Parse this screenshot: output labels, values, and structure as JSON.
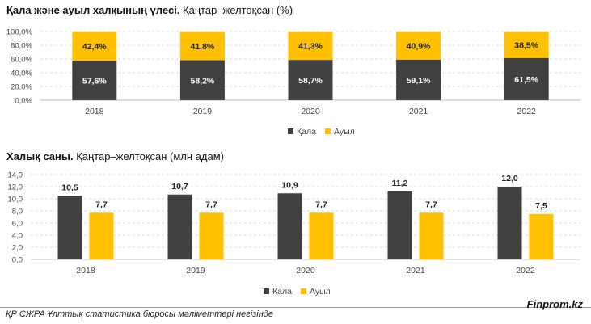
{
  "chart_data": [
    {
      "type": "bar",
      "stacked": true,
      "title": "Қала және ауыл халқының үлесі.",
      "subtitle": "Қаңтар–желтоқсан (%)",
      "categories": [
        "2018",
        "2019",
        "2020",
        "2021",
        "2022"
      ],
      "series": [
        {
          "name": "Қала",
          "values": [
            57.6,
            58.2,
            58.7,
            59.1,
            61.5
          ],
          "labels": [
            "57,6%",
            "58,2%",
            "58,7%",
            "59,1%",
            "61,5%"
          ],
          "color": "#404040"
        },
        {
          "name": "Ауыл",
          "values": [
            42.4,
            41.8,
            41.3,
            40.9,
            38.5
          ],
          "labels": [
            "42,4%",
            "41,8%",
            "41,3%",
            "40,9%",
            "38,5%"
          ],
          "color": "#FFC000"
        }
      ],
      "yticks": [
        "0,0%",
        "20,0%",
        "40,0%",
        "60,0%",
        "80,0%",
        "100,0%"
      ],
      "ylim": [
        0,
        100
      ],
      "grid": true,
      "legend": "bottom-right"
    },
    {
      "type": "bar",
      "stacked": false,
      "title": "Халық саны.",
      "subtitle": "Қаңтар–желтоқсан (млн адам)",
      "categories": [
        "2018",
        "2019",
        "2020",
        "2021",
        "2022"
      ],
      "series": [
        {
          "name": "Қала",
          "values": [
            10.5,
            10.7,
            10.9,
            11.2,
            12.0
          ],
          "labels": [
            "10,5",
            "10,7",
            "10,9",
            "11,2",
            "12,0"
          ],
          "color": "#404040"
        },
        {
          "name": "Ауыл",
          "values": [
            7.7,
            7.7,
            7.7,
            7.7,
            7.5
          ],
          "labels": [
            "7,7",
            "7,7",
            "7,7",
            "7,7",
            "7,5"
          ],
          "color": "#FFC000"
        }
      ],
      "yticks": [
        "0,0",
        "2,0",
        "4,0",
        "6,0",
        "8,0",
        "10,0",
        "12,0",
        "14,0"
      ],
      "ylim": [
        0,
        14
      ],
      "grid": true,
      "legend": "bottom-right"
    }
  ],
  "footer": {
    "source": "ҚР СЖРА Ұлттық статистика бюросы мәліметтері негізінде",
    "brand": "Finprom.kz"
  }
}
